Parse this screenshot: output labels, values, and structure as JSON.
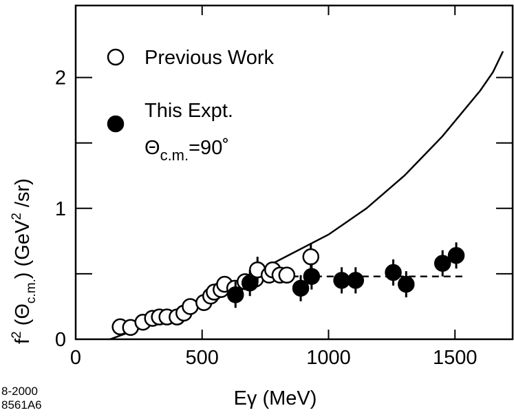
{
  "chart_data": {
    "type": "scatter",
    "x_label": "Eγ (MeV)",
    "y_label": [
      "f",
      "2",
      " (Θ",
      "c.m.",
      ")",
      " (GeV",
      "2",
      " /sr)"
    ],
    "notes": [
      "8-2000",
      "8561A6"
    ],
    "legend_extra": [
      "Θ",
      "c.m.",
      "=90˚"
    ],
    "xlim": [
      0,
      1728
    ],
    "ylim": [
      0,
      2.55
    ],
    "xticks": [
      0,
      500,
      1000,
      1500
    ],
    "yticks": [
      0,
      1,
      2
    ],
    "yminor_ticks": [
      0.5,
      1.5
    ],
    "color": "#000000",
    "series": [
      {
        "name": "Previous Work",
        "marker": "open",
        "x": [
          176,
          217,
          266,
          304,
          331,
          361,
          401,
          428,
          453,
          507,
          534,
          548,
          575,
          589,
          629,
          670,
          711,
          719,
          765,
          779,
          808,
          835,
          930
        ],
        "values": [
          0.095,
          0.09,
          0.13,
          0.16,
          0.17,
          0.17,
          0.17,
          0.2,
          0.25,
          0.28,
          0.33,
          0.36,
          0.38,
          0.42,
          0.39,
          0.44,
          0.46,
          0.53,
          0.49,
          0.53,
          0.49,
          0.49,
          0.63
        ],
        "errors": [
          null,
          null,
          null,
          null,
          null,
          null,
          null,
          null,
          null,
          null,
          null,
          null,
          null,
          null,
          null,
          null,
          null,
          0.1,
          null,
          null,
          null,
          null,
          0.1
        ]
      },
      {
        "name": "This Expt.",
        "marker": "filled",
        "x": [
          632,
          689,
          890,
          933,
          1052,
          1107,
          1256,
          1307,
          1451,
          1505
        ],
        "values": [
          0.34,
          0.43,
          0.39,
          0.48,
          0.45,
          0.45,
          0.51,
          0.42,
          0.58,
          0.64
        ],
        "errors": [
          0.1,
          0.1,
          0.1,
          0.1,
          0.1,
          0.1,
          0.1,
          0.1,
          0.1,
          0.1
        ]
      }
    ],
    "lines": [
      {
        "style": "solid",
        "x": [
          136,
          250,
          400,
          550,
          700,
          850,
          1000,
          1150,
          1300,
          1450,
          1600,
          1650,
          1690
        ],
        "values": [
          0,
          0.08,
          0.2,
          0.35,
          0.5,
          0.65,
          0.8,
          1.0,
          1.25,
          1.55,
          1.9,
          2.04,
          2.2
        ]
      },
      {
        "style": "dashed",
        "x": [
          854,
          1532
        ],
        "values": [
          0.48,
          0.48
        ]
      }
    ]
  }
}
